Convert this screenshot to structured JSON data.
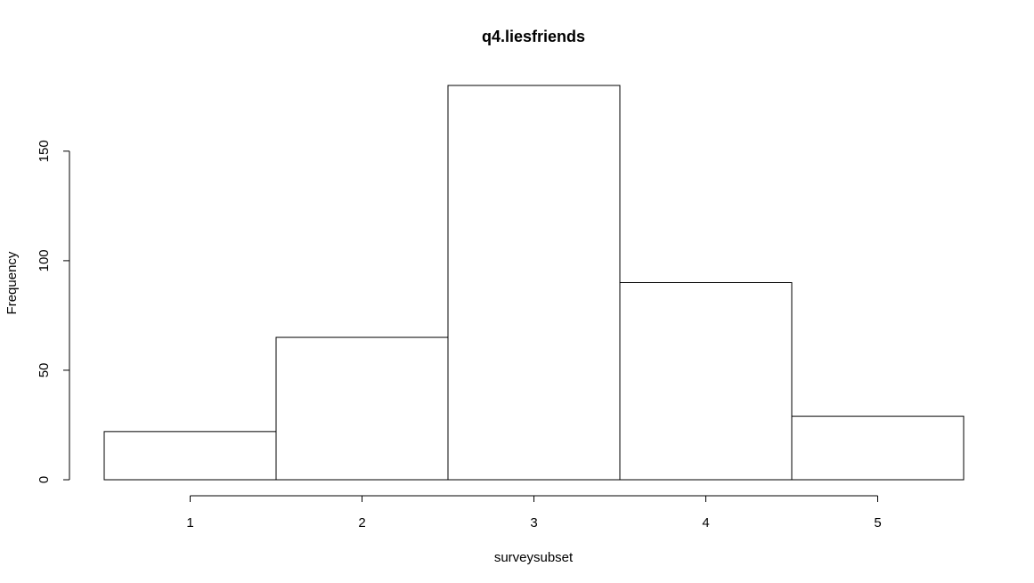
{
  "chart_data": {
    "type": "bar",
    "title": "q4.liesfriends",
    "xlabel": "surveysubset",
    "ylabel": "Frequency",
    "categories": [
      "1",
      "2",
      "3",
      "4",
      "5"
    ],
    "values": [
      22,
      65,
      180,
      90,
      29
    ],
    "bins": [
      [
        0.5,
        1.5
      ],
      [
        1.5,
        2.5
      ],
      [
        2.5,
        3.5
      ],
      [
        3.5,
        4.5
      ],
      [
        4.5,
        5.5
      ]
    ],
    "x_ticks": [
      1,
      2,
      3,
      4,
      5
    ],
    "y_ticks": [
      0,
      50,
      100,
      150
    ],
    "xlim": [
      0.5,
      5.5
    ],
    "ylim": [
      0,
      180
    ],
    "grid": false,
    "colors": {
      "bar_fill": "#ffffff",
      "bar_stroke": "#000000"
    }
  }
}
